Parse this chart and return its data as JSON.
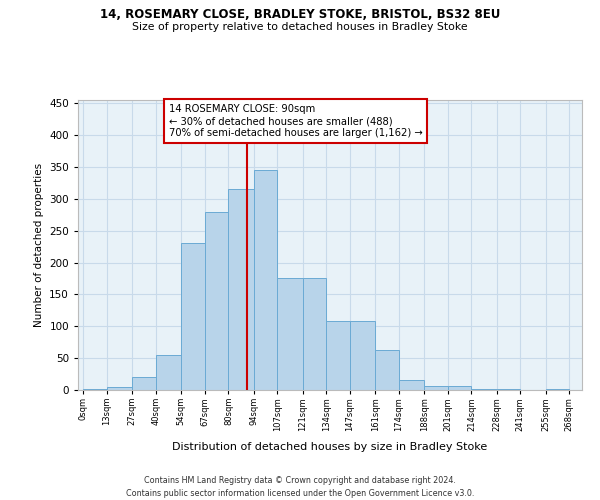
{
  "title1": "14, ROSEMARY CLOSE, BRADLEY STOKE, BRISTOL, BS32 8EU",
  "title2": "Size of property relative to detached houses in Bradley Stoke",
  "xlabel": "Distribution of detached houses by size in Bradley Stoke",
  "ylabel": "Number of detached properties",
  "bar_color": "#b8d4ea",
  "bar_edge_color": "#6aaad4",
  "grid_color": "#c8daea",
  "background_color": "#e8f2f8",
  "vline_x": 90,
  "vline_color": "#cc0000",
  "annotation_text": "14 ROSEMARY CLOSE: 90sqm\n← 30% of detached houses are smaller (488)\n70% of semi-detached houses are larger (1,162) →",
  "annotation_box_color": "white",
  "annotation_box_edge_color": "#cc0000",
  "footer1": "Contains HM Land Registry data © Crown copyright and database right 2024.",
  "footer2": "Contains public sector information licensed under the Open Government Licence v3.0.",
  "bin_edges": [
    0,
    13,
    27,
    40,
    54,
    67,
    80,
    94,
    107,
    121,
    134,
    147,
    161,
    174,
    188,
    201,
    214,
    228,
    241,
    255,
    268
  ],
  "bar_heights": [
    2,
    5,
    20,
    55,
    230,
    280,
    315,
    345,
    175,
    175,
    108,
    108,
    63,
    16,
    7,
    7,
    2,
    2,
    0,
    2
  ],
  "ylim": [
    0,
    455
  ],
  "yticks": [
    0,
    50,
    100,
    150,
    200,
    250,
    300,
    350,
    400,
    450
  ]
}
